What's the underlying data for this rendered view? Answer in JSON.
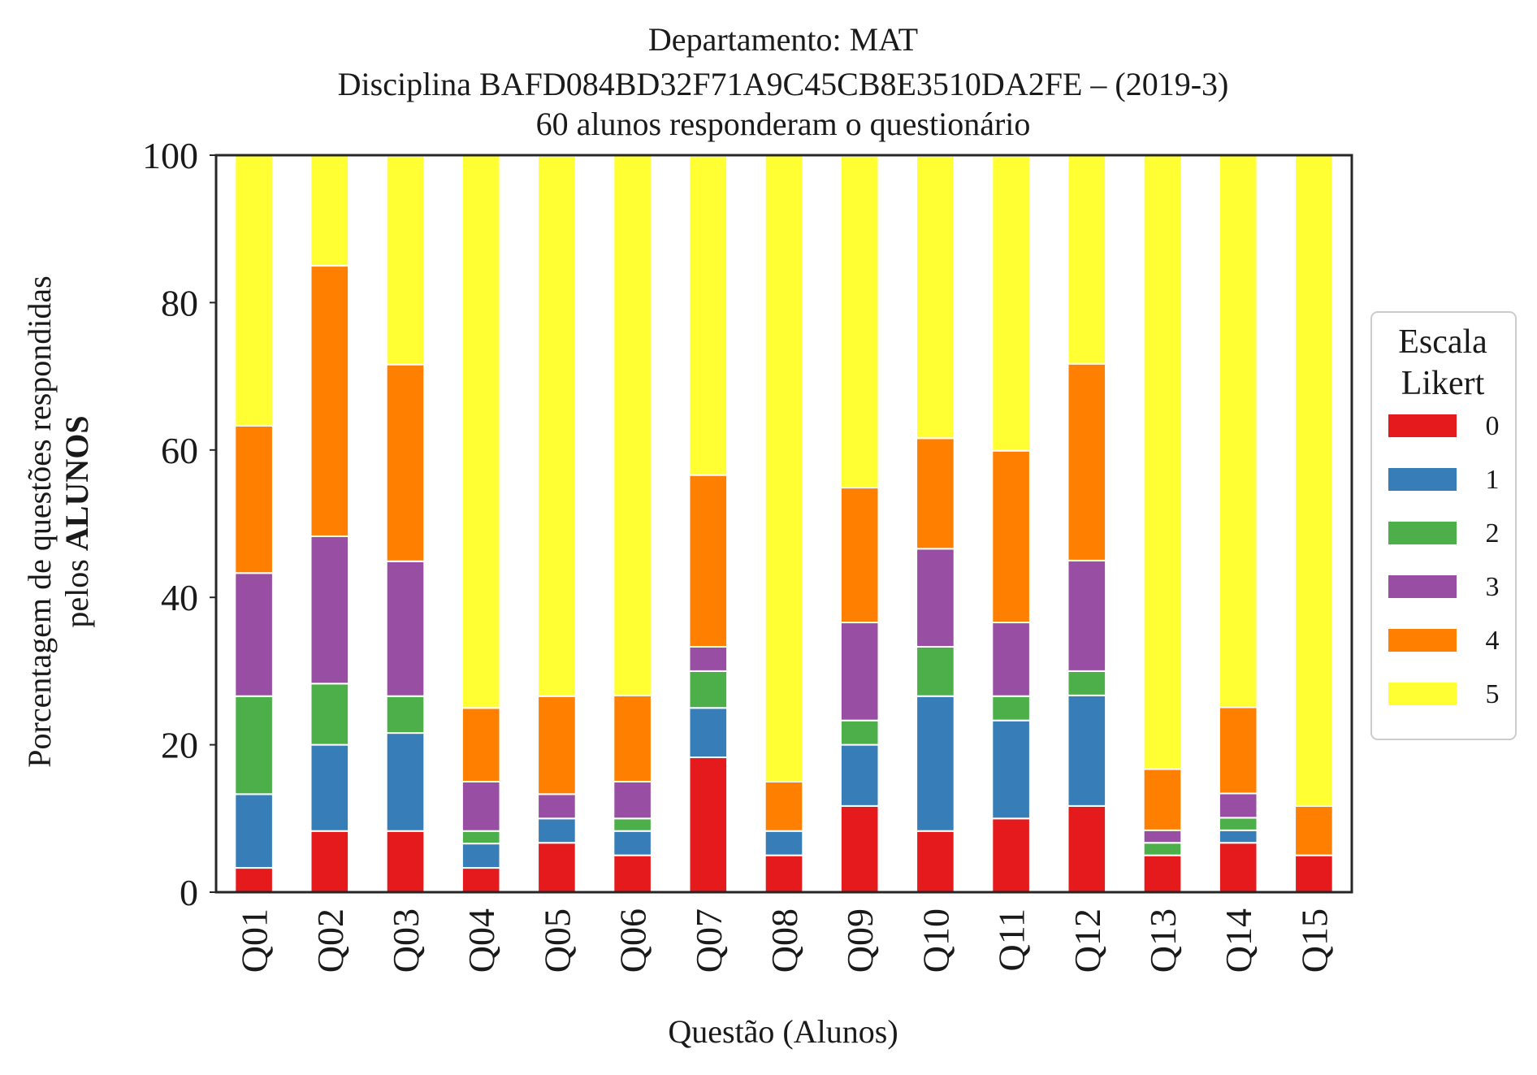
{
  "chart_data": {
    "type": "bar",
    "stacked": true,
    "title": [
      "Departamento: MAT",
      "Disciplina BAFD084BD32F71A9C45CB8E3510DA2FE – (2019-3)",
      "60 alunos responderam o questionário"
    ],
    "xlabel": "Questão (Alunos)",
    "ylabel_line1": "Porcentagem de questões respondidas",
    "ylabel_line2_prefix": "pelos ",
    "ylabel_line2_bold": "ALUNOS",
    "ylim": [
      0,
      100
    ],
    "yticks": [
      0,
      20,
      40,
      60,
      80,
      100
    ],
    "categories": [
      "Q01",
      "Q02",
      "Q03",
      "Q04",
      "Q05",
      "Q06",
      "Q07",
      "Q08",
      "Q09",
      "Q10",
      "Q11",
      "Q12",
      "Q13",
      "Q14",
      "Q15"
    ],
    "legend_title": [
      "Escala",
      "Likert"
    ],
    "legend_position": "right",
    "grid": false,
    "series": [
      {
        "name": "0",
        "color": "#e41a1c",
        "values": [
          3.3,
          8.3,
          8.3,
          3.3,
          6.7,
          5.0,
          18.3,
          5.0,
          11.7,
          8.3,
          10.0,
          11.7,
          5.0,
          6.7,
          5.0
        ]
      },
      {
        "name": "1",
        "color": "#377eb8",
        "values": [
          10.0,
          11.7,
          13.3,
          3.3,
          3.3,
          3.3,
          6.7,
          3.3,
          8.3,
          18.3,
          13.3,
          15.0,
          0.0,
          1.7,
          0.0
        ]
      },
      {
        "name": "2",
        "color": "#4daf4a",
        "values": [
          13.3,
          8.3,
          5.0,
          1.7,
          0.0,
          1.7,
          5.0,
          0.0,
          3.3,
          6.7,
          3.3,
          3.3,
          1.7,
          1.7,
          0.0
        ]
      },
      {
        "name": "3",
        "color": "#984ea3",
        "values": [
          16.7,
          20.0,
          18.3,
          6.7,
          3.3,
          5.0,
          3.3,
          0.0,
          13.3,
          13.3,
          10.0,
          15.0,
          1.7,
          3.3,
          0.0
        ]
      },
      {
        "name": "4",
        "color": "#ff7f00",
        "values": [
          20.0,
          36.7,
          26.7,
          10.0,
          13.3,
          11.7,
          23.3,
          6.7,
          18.3,
          15.0,
          23.3,
          26.7,
          8.3,
          11.7,
          6.7
        ]
      },
      {
        "name": "5",
        "color": "#ffff33",
        "values": [
          36.7,
          15.0,
          28.3,
          75.0,
          73.3,
          73.3,
          43.3,
          85.0,
          45.0,
          38.3,
          40.0,
          28.3,
          83.3,
          75.0,
          88.3
        ]
      }
    ]
  }
}
